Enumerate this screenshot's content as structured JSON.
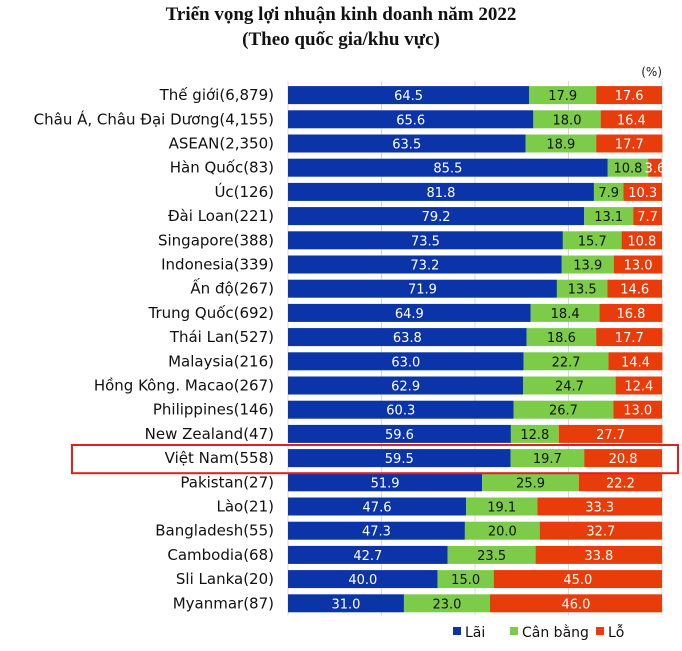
{
  "chart_data": {
    "type": "bar",
    "orientation": "horizontal",
    "stacked": true,
    "title": "Triển vọng lợi nhuận kinh doanh năm 2022",
    "subtitle": "(Theo quốc gia/khu vực)",
    "unit": "(%)",
    "xlim": [
      0,
      100
    ],
    "grid": true,
    "legend_position": "bottom-right",
    "highlighted_category": "Việt Nam(558)",
    "highlight_color": "#e02020",
    "categories": [
      "Thế giới(6,879)",
      "Châu Á, Châu Đại Dương(4,155)",
      "ASEAN(2,350)",
      "Hàn Quốc(83)",
      "Úc(126)",
      "Đài Loan(221)",
      "Singapore(388)",
      "Indonesia(339)",
      "Ấn độ(267)",
      "Trung Quốc(692)",
      "Thái Lan(527)",
      "Malaysia(216)",
      "Hồng Kông. Macao(267)",
      "Philippines(146)",
      "New Zealand(47)",
      "Việt Nam(558)",
      "Pakistan(27)",
      "Lào(21)",
      "Bangladesh(55)",
      "Cambodia(68)",
      "Sli Lanka(20)",
      "Myanmar(87)"
    ],
    "series": [
      {
        "name": "Lãi",
        "color": "#0a34a8",
        "values": [
          64.5,
          65.6,
          63.5,
          85.5,
          81.8,
          79.2,
          73.5,
          73.2,
          71.9,
          64.9,
          63.8,
          63.0,
          62.9,
          60.3,
          59.6,
          59.5,
          51.9,
          47.6,
          47.3,
          42.7,
          40.0,
          31.0
        ],
        "labels": [
          "64.5",
          "65.6",
          "63.5",
          "85.5",
          "81.8",
          "79.2",
          "73.5",
          "73.2",
          "71.9",
          "64.9",
          "63.8",
          "63.0",
          "62.9",
          "60.3",
          "59.6",
          "59.5",
          "51.9",
          "47.6",
          "47.3",
          "42.7",
          "40.0",
          "31.0"
        ]
      },
      {
        "name": "Cân bằng",
        "color": "#7ccc4a",
        "values": [
          17.9,
          18.0,
          18.9,
          10.8,
          7.9,
          13.1,
          15.7,
          13.9,
          13.5,
          18.4,
          18.6,
          22.7,
          24.7,
          26.7,
          12.8,
          19.7,
          25.9,
          19.1,
          20.0,
          23.5,
          15.0,
          23.0
        ],
        "labels": [
          "17.9",
          "18.0",
          "18.9",
          "10.8",
          "7.9",
          "13.1",
          "15.7",
          "13.9",
          "13.5",
          "18.4",
          "18.6",
          "22.7",
          "24.7",
          "26.7",
          "12.8",
          "19.7",
          "25.9",
          "19.1",
          "20.0",
          "23.5",
          "15.0",
          "23.0"
        ]
      },
      {
        "name": "Lỗ",
        "color": "#e83c0a",
        "values": [
          17.6,
          16.4,
          17.7,
          3.6,
          10.3,
          7.7,
          10.8,
          13.0,
          14.6,
          16.8,
          17.7,
          14.4,
          12.4,
          13.0,
          27.7,
          20.8,
          22.2,
          33.3,
          32.7,
          33.8,
          45.0,
          46.0
        ],
        "labels": [
          "17.6",
          "16.4",
          "17.7",
          "3.6",
          "10.3",
          "7.7",
          "10.8",
          "13.0",
          "14.6",
          "16.8",
          "17.7",
          "14.4",
          "12.4",
          "13.0",
          "27.7",
          "20.8",
          "22.2",
          "33.3",
          "32.7",
          "33.8",
          "45.0",
          "46.0"
        ]
      }
    ]
  }
}
